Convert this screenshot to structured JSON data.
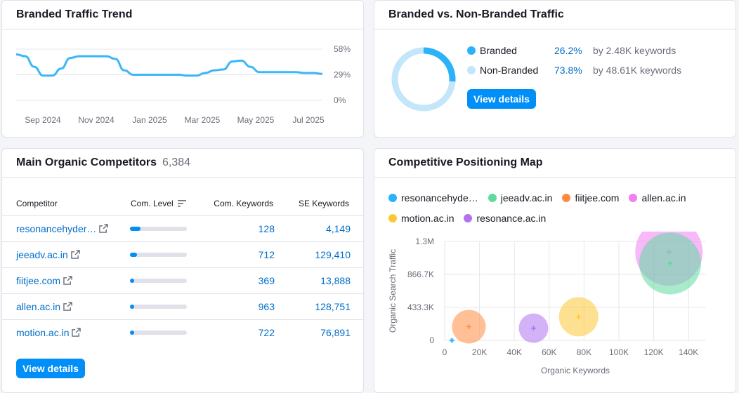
{
  "trend": {
    "title": "Branded Traffic Trend",
    "y_ticks": [
      "58%",
      "29%",
      "0%"
    ],
    "x_ticks": [
      "Sep 2024",
      "Nov 2024",
      "Jan 2025",
      "Mar 2025",
      "May 2025",
      "Jul 2025"
    ],
    "line_color": "#3ab7f8",
    "values": [
      52,
      50,
      38,
      28,
      28,
      36,
      48,
      50,
      50,
      50,
      50,
      47,
      34,
      29,
      29,
      29,
      29,
      29,
      29,
      28,
      28,
      31,
      34,
      35,
      44,
      45,
      38,
      32,
      32,
      32,
      32,
      32,
      31,
      31,
      30
    ]
  },
  "branded": {
    "title": "Branded vs. Non-Branded Traffic",
    "items": [
      {
        "label": "Branded",
        "pct": "26.2%",
        "kw": "by 2.48K keywords",
        "color": "#2cb2f9"
      },
      {
        "label": "Non-Branded",
        "pct": "73.8%",
        "kw": "by 48.61K keywords",
        "color": "#c4e6fb"
      }
    ],
    "branded_share": 0.262,
    "button": "View details"
  },
  "competitors": {
    "title": "Main Organic Competitors",
    "count": "6,384",
    "headers": {
      "competitor": "Competitor",
      "level": "Com. Level",
      "com_kw": "Com. Keywords",
      "se_kw": "SE Keywords"
    },
    "rows": [
      {
        "name": "resonancehyder…",
        "level": 0.18,
        "com_kw": "128",
        "se_kw": "4,149"
      },
      {
        "name": "jeeadv.ac.in",
        "level": 0.12,
        "com_kw": "712",
        "se_kw": "129,410"
      },
      {
        "name": "fiitjee.com",
        "level": 0.08,
        "com_kw": "369",
        "se_kw": "13,888"
      },
      {
        "name": "allen.ac.in",
        "level": 0.08,
        "com_kw": "963",
        "se_kw": "128,751"
      },
      {
        "name": "motion.ac.in",
        "level": 0.08,
        "com_kw": "722",
        "se_kw": "76,891"
      }
    ],
    "button": "View details"
  },
  "positioning": {
    "title": "Competitive Positioning Map",
    "legend": [
      {
        "name": "resonancehyde…",
        "color": "#2cb2f9"
      },
      {
        "name": "jeeadv.ac.in",
        "color": "#5fdba0"
      },
      {
        "name": "fiitjee.com",
        "color": "#ff8c42"
      },
      {
        "name": "allen.ac.in",
        "color": "#f17ff0"
      },
      {
        "name": "motion.ac.in",
        "color": "#fcc934"
      },
      {
        "name": "resonance.ac.in",
        "color": "#b073f0"
      }
    ],
    "y_ticks": [
      "1.3M",
      "866.7K",
      "433.3K",
      "0"
    ],
    "x_ticks": [
      "0",
      "20K",
      "40K",
      "60K",
      "80K",
      "100K",
      "120K",
      "140K"
    ],
    "ylabel": "Organic Search Traffic",
    "xlabel": "Organic Keywords"
  },
  "chart_data": [
    {
      "type": "line",
      "title": "Branded Traffic Trend",
      "x_ticks": [
        "Sep 2024",
        "Nov 2024",
        "Jan 2025",
        "Mar 2025",
        "May 2025",
        "Jul 2025"
      ],
      "ylim": [
        0,
        58
      ],
      "y_ticks": [
        "58%",
        "29%",
        "0%"
      ]
    },
    {
      "type": "pie",
      "title": "Branded vs. Non-Branded Traffic",
      "categories": [
        "Branded",
        "Non-Branded"
      ],
      "values": [
        26.2,
        73.8
      ]
    },
    {
      "type": "scatter",
      "title": "Competitive Positioning Map",
      "xlabel": "Organic Keywords",
      "ylabel": "Organic Search Traffic",
      "xlim": [
        0,
        150000
      ],
      "ylim": [
        0,
        1300000
      ],
      "series": [
        {
          "name": "resonancehyde…",
          "x": [
            4149
          ],
          "y": [
            0
          ],
          "r": 0.03
        },
        {
          "name": "jeeadv.ac.in",
          "x": [
            129410
          ],
          "y": [
            1010000
          ],
          "r": 0.44
        },
        {
          "name": "fiitjee.com",
          "x": [
            13888
          ],
          "y": [
            180000
          ],
          "r": 0.24
        },
        {
          "name": "allen.ac.in",
          "x": [
            128751
          ],
          "y": [
            1160000
          ],
          "r": 0.48
        },
        {
          "name": "motion.ac.in",
          "x": [
            76891
          ],
          "y": [
            310000
          ],
          "r": 0.28
        },
        {
          "name": "resonance.ac.in",
          "x": [
            51000
          ],
          "y": [
            160000
          ],
          "r": 0.21
        }
      ]
    }
  ]
}
